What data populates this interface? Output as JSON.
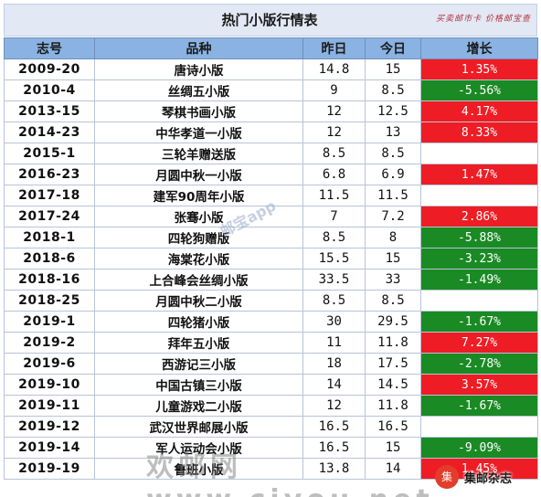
{
  "title": "热门小版行情表",
  "seal": "买卖邮市卡 价格邮宝查",
  "columns": [
    "志号",
    "品种",
    "昨日",
    "今日",
    "增长"
  ],
  "rows": [
    {
      "id": "2009-20",
      "name": "唐诗小版",
      "prev": "14.8",
      "today": "15",
      "growth": "1.35%",
      "trend": "up"
    },
    {
      "id": "2010-4",
      "name": "丝绸五小版",
      "prev": "9",
      "today": "8.5",
      "growth": "-5.56%",
      "trend": "down"
    },
    {
      "id": "2013-15",
      "name": "琴棋书画小版",
      "prev": "12",
      "today": "12.5",
      "growth": "4.17%",
      "trend": "up"
    },
    {
      "id": "2014-23",
      "name": "中华孝道一小版",
      "prev": "12",
      "today": "13",
      "growth": "8.33%",
      "trend": "up"
    },
    {
      "id": "2015-1",
      "name": "三轮羊赠送版",
      "prev": "8.5",
      "today": "8.5",
      "growth": "",
      "trend": "none"
    },
    {
      "id": "2016-23",
      "name": "月圆中秋一小版",
      "prev": "6.8",
      "today": "6.9",
      "growth": "1.47%",
      "trend": "up"
    },
    {
      "id": "2017-18",
      "name": "建军90周年小版",
      "prev": "11.5",
      "today": "11.5",
      "growth": "",
      "trend": "none"
    },
    {
      "id": "2017-24",
      "name": "张骞小版",
      "prev": "7",
      "today": "7.2",
      "growth": "2.86%",
      "trend": "up"
    },
    {
      "id": "2018-1",
      "name": "四轮狗赠版",
      "prev": "8.5",
      "today": "8",
      "growth": "-5.88%",
      "trend": "down"
    },
    {
      "id": "2018-6",
      "name": "海棠花小版",
      "prev": "15.5",
      "today": "15",
      "growth": "-3.23%",
      "trend": "down"
    },
    {
      "id": "2018-16",
      "name": "上合峰会丝绸小版",
      "prev": "33.5",
      "today": "33",
      "growth": "-1.49%",
      "trend": "down"
    },
    {
      "id": "2018-25",
      "name": "月圆中秋二小版",
      "prev": "8.5",
      "today": "8.5",
      "growth": "",
      "trend": "none"
    },
    {
      "id": "2019-1",
      "name": "四轮猪小版",
      "prev": "30",
      "today": "29.5",
      "growth": "-1.67%",
      "trend": "down"
    },
    {
      "id": "2019-2",
      "name": "拜年五小版",
      "prev": "11",
      "today": "11.8",
      "growth": "7.27%",
      "trend": "up"
    },
    {
      "id": "2019-6",
      "name": "西游记三小版",
      "prev": "18",
      "today": "17.5",
      "growth": "-2.78%",
      "trend": "down"
    },
    {
      "id": "2019-10",
      "name": "中国古镇三小版",
      "prev": "14",
      "today": "14.5",
      "growth": "3.57%",
      "trend": "up"
    },
    {
      "id": "2019-11",
      "name": "儿童游戏二小版",
      "prev": "12",
      "today": "11.8",
      "growth": "-1.67%",
      "trend": "down"
    },
    {
      "id": "2019-12",
      "name": "武汉世界邮展小版",
      "prev": "16.5",
      "today": "16.5",
      "growth": "",
      "trend": "none"
    },
    {
      "id": "2019-14",
      "name": "军人运动会小版",
      "prev": "16.5",
      "today": "15",
      "growth": "-9.09%",
      "trend": "down"
    },
    {
      "id": "2019-19",
      "name": "鲁班小版",
      "prev": "13.8",
      "today": "14",
      "growth": "1.45%",
      "trend": "up"
    }
  ],
  "watermarks": {
    "app": "邮宝app",
    "site": "欢邮网 www.cjyou.net"
  },
  "badge": {
    "logo": "集",
    "label": "集邮杂志"
  },
  "colors": {
    "header_bg": "#8ab3e3",
    "up": "#ee1c24",
    "down": "#1a8a24",
    "title_bg": "#e2e8f4"
  }
}
